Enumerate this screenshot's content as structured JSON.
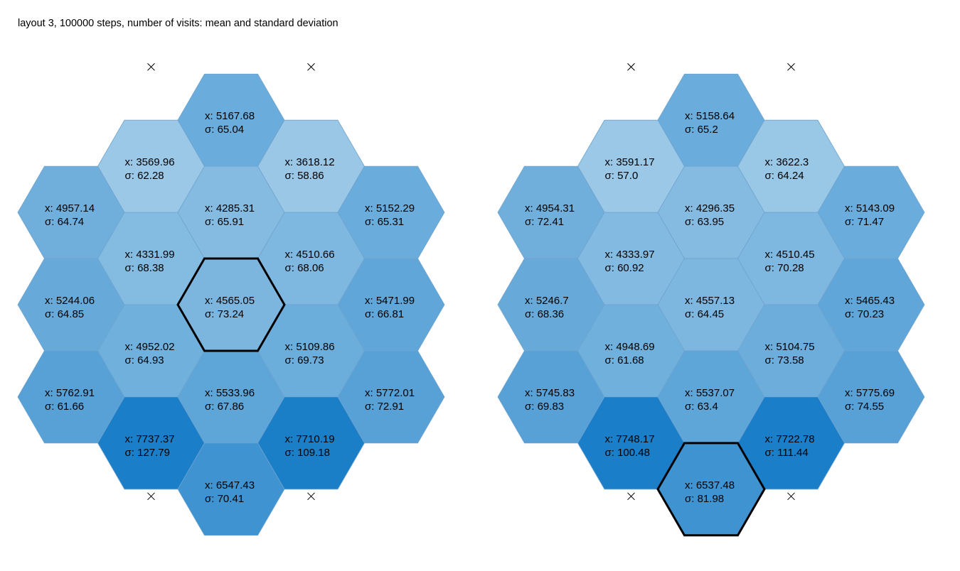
{
  "title": "layout 3, 100000 steps, number of visits: mean and standard deviation",
  "mean_prefix": "x: ",
  "sd_prefix": "σ: ",
  "marker_glyph": "×",
  "color_scale": {
    "low": "#9bc8e6",
    "high": "#1a7ec8",
    "min_value": 3569.96,
    "max_value": 7748.17
  },
  "chart_data": [
    {
      "type": "hexgrid",
      "name": "",
      "grid": {
        "columns": [
          -2,
          -1,
          0,
          1,
          2
        ]
      },
      "highlight": {
        "col": 0,
        "row": 0
      },
      "boundary_markers": [
        {
          "col": -1,
          "row": -2.5
        },
        {
          "col": 1,
          "row": -2.5
        },
        {
          "col": -1,
          "row": 1.5
        },
        {
          "col": 1,
          "row": 1.5
        }
      ],
      "cells": [
        {
          "col": 0,
          "row": -2,
          "mean": "5167.68",
          "sd": "65.04"
        },
        {
          "col": -1,
          "row": -1.5,
          "mean": "3569.96",
          "sd": "62.28"
        },
        {
          "col": 1,
          "row": -1.5,
          "mean": "3618.12",
          "sd": "58.86"
        },
        {
          "col": 0,
          "row": -1,
          "mean": "4285.31",
          "sd": "65.91"
        },
        {
          "col": -2,
          "row": -1,
          "mean": "4957.14",
          "sd": "64.74"
        },
        {
          "col": 2,
          "row": -1,
          "mean": "5152.29",
          "sd": "65.31"
        },
        {
          "col": -1,
          "row": -0.5,
          "mean": "4331.99",
          "sd": "68.38"
        },
        {
          "col": 1,
          "row": -0.5,
          "mean": "4510.66",
          "sd": "68.06"
        },
        {
          "col": 0,
          "row": 0,
          "mean": "4565.05",
          "sd": "73.24"
        },
        {
          "col": -2,
          "row": 0,
          "mean": "5244.06",
          "sd": "64.85"
        },
        {
          "col": 2,
          "row": 0,
          "mean": "5471.99",
          "sd": "66.81"
        },
        {
          "col": -1,
          "row": 0.5,
          "mean": "4952.02",
          "sd": "64.93"
        },
        {
          "col": 1,
          "row": 0.5,
          "mean": "5109.86",
          "sd": "69.73"
        },
        {
          "col": 0,
          "row": 1,
          "mean": "5533.96",
          "sd": "67.86"
        },
        {
          "col": -2,
          "row": 1,
          "mean": "5762.91",
          "sd": "61.66"
        },
        {
          "col": 2,
          "row": 1,
          "mean": "5772.01",
          "sd": "72.91"
        },
        {
          "col": -1,
          "row": 1.5,
          "mean": "7737.37",
          "sd": "127.79"
        },
        {
          "col": 1,
          "row": 1.5,
          "mean": "7710.19",
          "sd": "109.18"
        },
        {
          "col": 0,
          "row": 2,
          "mean": "6547.43",
          "sd": "70.41"
        }
      ]
    },
    {
      "type": "hexgrid",
      "name": "",
      "grid": {
        "columns": [
          -2,
          -1,
          0,
          1,
          2
        ]
      },
      "highlight": {
        "col": 0,
        "row": 2
      },
      "boundary_markers": [
        {
          "col": -1,
          "row": -2.5
        },
        {
          "col": 1,
          "row": -2.5
        },
        {
          "col": -1,
          "row": 1.5
        },
        {
          "col": 1,
          "row": 1.5
        }
      ],
      "cells": [
        {
          "col": 0,
          "row": -2,
          "mean": "5158.64",
          "sd": "65.2"
        },
        {
          "col": -1,
          "row": -1.5,
          "mean": "3591.17",
          "sd": "57.0"
        },
        {
          "col": 1,
          "row": -1.5,
          "mean": "3622.3",
          "sd": "64.24"
        },
        {
          "col": 0,
          "row": -1,
          "mean": "4296.35",
          "sd": "63.95"
        },
        {
          "col": -2,
          "row": -1,
          "mean": "4954.31",
          "sd": "72.41"
        },
        {
          "col": 2,
          "row": -1,
          "mean": "5143.09",
          "sd": "71.47"
        },
        {
          "col": -1,
          "row": -0.5,
          "mean": "4333.97",
          "sd": "60.92"
        },
        {
          "col": 1,
          "row": -0.5,
          "mean": "4510.45",
          "sd": "70.28"
        },
        {
          "col": 0,
          "row": 0,
          "mean": "4557.13",
          "sd": "64.45"
        },
        {
          "col": -2,
          "row": 0,
          "mean": "5246.7",
          "sd": "68.36"
        },
        {
          "col": 2,
          "row": 0,
          "mean": "5465.43",
          "sd": "70.23"
        },
        {
          "col": -1,
          "row": 0.5,
          "mean": "4948.69",
          "sd": "61.68"
        },
        {
          "col": 1,
          "row": 0.5,
          "mean": "5104.75",
          "sd": "73.58"
        },
        {
          "col": 0,
          "row": 1,
          "mean": "5537.07",
          "sd": "63.4"
        },
        {
          "col": -2,
          "row": 1,
          "mean": "5745.83",
          "sd": "69.83"
        },
        {
          "col": 2,
          "row": 1,
          "mean": "5775.69",
          "sd": "74.55"
        },
        {
          "col": -1,
          "row": 1.5,
          "mean": "7748.17",
          "sd": "100.48"
        },
        {
          "col": 1,
          "row": 1.5,
          "mean": "7722.78",
          "sd": "111.44"
        },
        {
          "col": 0,
          "row": 2,
          "mean": "6537.48",
          "sd": "81.98"
        }
      ]
    }
  ]
}
